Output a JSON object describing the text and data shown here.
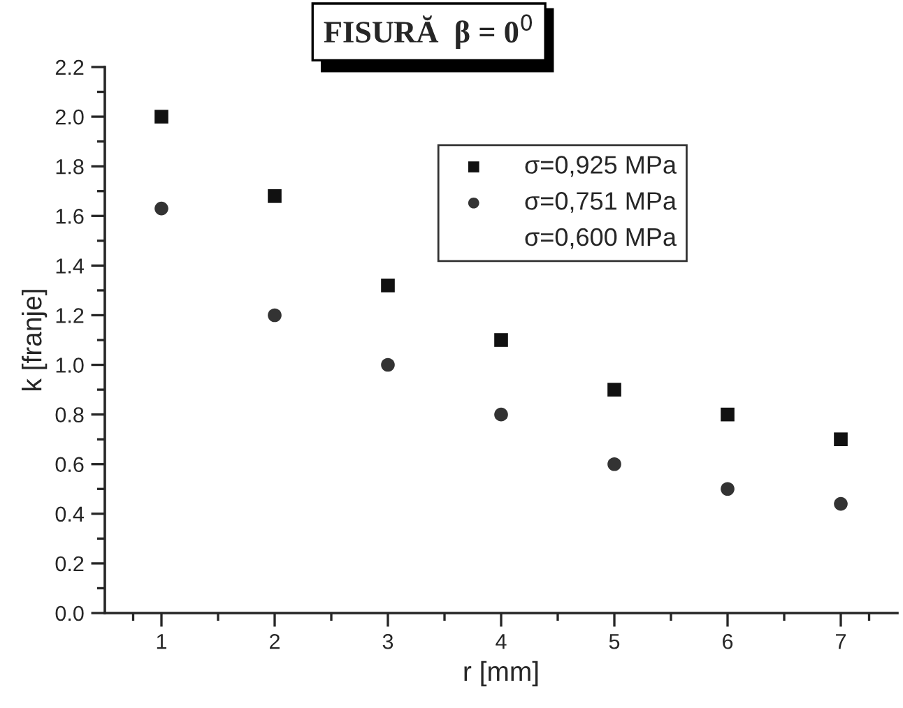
{
  "chart_data": {
    "type": "scatter",
    "title": "FISURĂ  β = 0$^{0}$",
    "xlabel": "r [mm]",
    "ylabel": "k [franje]",
    "x": [
      1,
      2,
      3,
      4,
      5,
      6,
      7
    ],
    "series": [
      {
        "name": "σ=0,925 MPa",
        "color": "#111111",
        "marker": "square",
        "values": [
          2.0,
          1.68,
          1.32,
          1.1,
          0.9,
          0.8,
          0.7
        ]
      },
      {
        "name": "σ=0,751 MPa",
        "color": "#333333",
        "marker": "circle",
        "values": [
          1.63,
          1.2,
          1.0,
          0.8,
          0.6,
          0.5,
          0.44
        ]
      },
      {
        "name": "σ=0,600 MPa",
        "marker": "none",
        "values": [
          null,
          null,
          null,
          null,
          null,
          null,
          null
        ]
      }
    ],
    "xlim": [
      0.5,
      7.5
    ],
    "xticks": [
      1,
      2,
      3,
      4,
      5,
      6,
      7
    ],
    "ylim": [
      0,
      2.2
    ],
    "yticks": [
      {
        "value": 0,
        "label": "0.0"
      },
      {
        "value": 0.2,
        "label": "0.2"
      },
      {
        "value": 0.4,
        "label": "0.4"
      },
      {
        "value": 0.6,
        "label": "0.6"
      },
      {
        "value": 0.8,
        "label": "0.8"
      },
      {
        "value": 1.0,
        "label": "1.0"
      },
      {
        "value": 1.2,
        "label": "1.2"
      },
      {
        "value": 1.4,
        "label": "1.4"
      },
      {
        "value": 1.6,
        "label": "1.6"
      },
      {
        "value": 1.8,
        "label": "1.8"
      },
      {
        "value": 2.0,
        "label": "2.0"
      },
      {
        "value": 2.2,
        "label": "2.2"
      }
    ],
    "grid": false,
    "legend": "top right"
  }
}
